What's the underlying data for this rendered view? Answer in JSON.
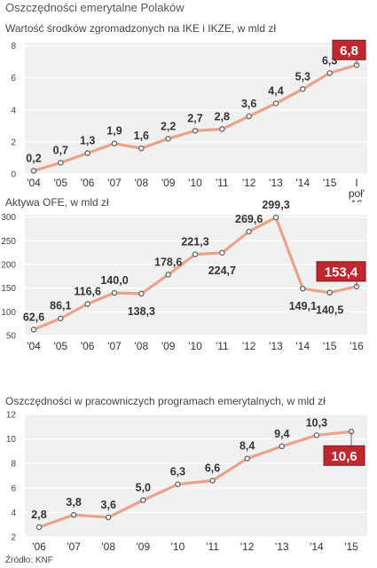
{
  "header": {
    "title": "Oszczędności emerytalne Polaków"
  },
  "source": "Źródło: KNF",
  "colors": {
    "line": "#e8a388",
    "highlight": "#c0282f",
    "plot_bg": "#f0f0f0",
    "text": "#333333",
    "marker": "#6e6e6e"
  },
  "chart_data": [
    {
      "type": "line",
      "title": "Wartość środków zgromadzonych na IKE i IKZE, w mld zł",
      "categories": [
        "'04",
        "'05",
        "'06",
        "'07",
        "'08",
        "'09",
        "'10",
        "'11",
        "'12",
        "'13",
        "'14",
        "'15",
        "I poł' 16"
      ],
      "values": [
        0.2,
        0.7,
        1.3,
        1.9,
        1.6,
        2.2,
        2.7,
        2.8,
        3.6,
        4.4,
        5.3,
        6.3,
        6.8
      ],
      "value_labels": [
        "0,2",
        "0,7",
        "1,3",
        "1,9",
        "1,6",
        "2,2",
        "2,7",
        "2,8",
        "3,6",
        "4,4",
        "5,3",
        "6,3",
        "6,8"
      ],
      "yticks": [
        0,
        2,
        4,
        6,
        8
      ],
      "ylim": [
        0,
        8.2
      ],
      "highlight_last": true
    },
    {
      "type": "line",
      "title": "Aktywa OFE, w mld zł",
      "categories": [
        "'04",
        "'05",
        "'06",
        "'07",
        "'08",
        "'09",
        "'10",
        "'11",
        "'12",
        "'13",
        "'14",
        "'15",
        "'16"
      ],
      "values": [
        62.6,
        86.1,
        116.6,
        140.0,
        138.3,
        178.6,
        221.3,
        224.7,
        269.6,
        299.3,
        149.1,
        140.5,
        153.4
      ],
      "value_labels": [
        "62,6",
        "86,1",
        "116,6",
        "140,0",
        "138,3",
        "178,6",
        "221,3",
        "224,7",
        "269,6",
        "299,3",
        "149,1",
        "140,5",
        "153,4"
      ],
      "yticks": [
        50,
        100,
        150,
        200,
        250,
        300
      ],
      "ylim": [
        50,
        305
      ],
      "highlight_last": true
    },
    {
      "type": "line",
      "title": "Oszczędności w pracowniczych programach emerytalnych, w mld zł",
      "categories": [
        "'06",
        "'07",
        "'08",
        "'09",
        "'10",
        "'11",
        "'12",
        "'13",
        "'14",
        "'15"
      ],
      "values": [
        2.8,
        3.8,
        3.6,
        5.0,
        6.3,
        6.6,
        8.4,
        9.4,
        10.3,
        10.6
      ],
      "value_labels": [
        "2,8",
        "3,8",
        "3,6",
        "5,0",
        "6,3",
        "6,6",
        "8,4",
        "9,4",
        "10,3",
        "10,6"
      ],
      "yticks": [
        2,
        4,
        6,
        8,
        10,
        12
      ],
      "ylim": [
        2,
        12
      ],
      "highlight_last": true
    }
  ]
}
